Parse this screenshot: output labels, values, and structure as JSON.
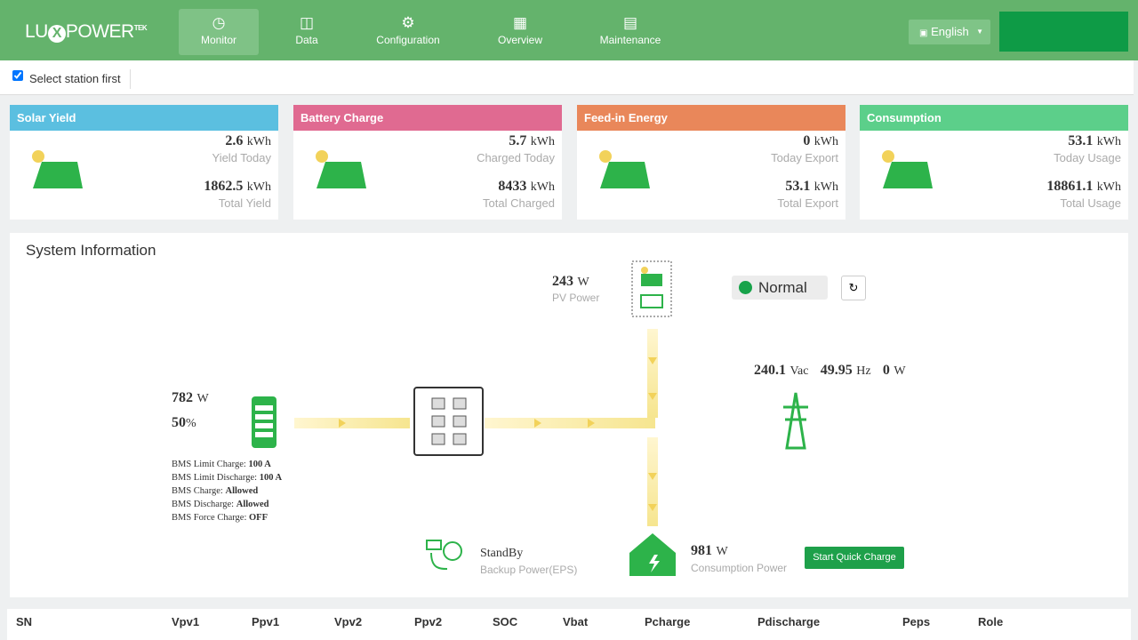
{
  "nav": {
    "logo": {
      "left": "LU",
      "mark": "X",
      "right": "POWER",
      "sup": "TEK"
    },
    "items": [
      "Monitor",
      "Data",
      "Configuration",
      "Overview",
      "Maintenance"
    ],
    "language": "English"
  },
  "station": {
    "label": "Select station first"
  },
  "cards": [
    {
      "title": "Solar Yield",
      "value1": "2.6",
      "unit1": "kWh",
      "label1": "Yield Today",
      "value2": "1862.5",
      "unit2": "kWh",
      "label2": "Total Yield"
    },
    {
      "title": "Battery Charge",
      "value1": "5.7",
      "unit1": "kWh",
      "label1": "Charged Today",
      "value2": "8433",
      "unit2": "kWh",
      "label2": "Total Charged"
    },
    {
      "title": "Feed-in Energy",
      "value1": "0",
      "unit1": "kWh",
      "label1": "Today Export",
      "value2": "53.1",
      "unit2": "kWh",
      "label2": "Total Export"
    },
    {
      "title": "Consumption",
      "value1": "53.1",
      "unit1": "kWh",
      "label1": "Today Usage",
      "value2": "18861.1",
      "unit2": "kWh",
      "label2": "Total Usage"
    }
  ],
  "system": {
    "title": "System Information",
    "pv": {
      "value": "243",
      "unit": "W",
      "label": "PV Power"
    },
    "status": "Normal",
    "grid": {
      "voltage": "240.1",
      "voltage_unit": "Vac",
      "frequency": "49.95",
      "frequency_unit": "Hz",
      "power": "0",
      "power_unit": "W"
    },
    "battery": {
      "power": "782",
      "power_unit": "W",
      "soc": "50",
      "soc_unit": "%"
    },
    "bms": [
      {
        "label": "BMS Limit Charge:",
        "value": "100 A"
      },
      {
        "label": "BMS Limit Discharge:",
        "value": "100 A"
      },
      {
        "label": "BMS Charge:",
        "value": "Allowed"
      },
      {
        "label": "BMS Discharge:",
        "value": "Allowed"
      },
      {
        "label": "BMS Force Charge:",
        "value": "OFF"
      }
    ],
    "eps": {
      "status": "StandBy",
      "label": "Backup Power(EPS)"
    },
    "consumption": {
      "value": "981",
      "unit": "W",
      "label": "Consumption Power"
    },
    "button": "Start Quick Charge"
  },
  "table": {
    "headers": [
      "SN",
      "Vpv1",
      "Ppv1",
      "Vpv2",
      "Ppv2",
      "SOC",
      "Vbat",
      "Pcharge",
      "Pdischarge",
      "Peps",
      "Role"
    ]
  }
}
